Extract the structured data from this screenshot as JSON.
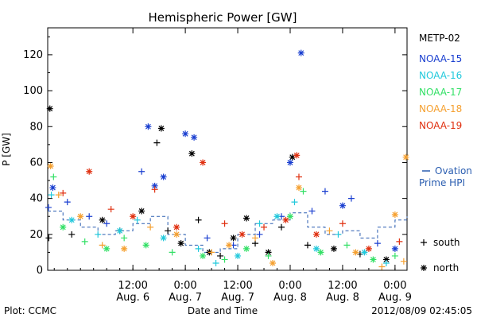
{
  "chart_data": {
    "type": "scatter",
    "title": "Hemispheric Power [GW]",
    "ylabel": "P [GW]",
    "xlabel": "Date and Time",
    "footer_left": "Plot: CCMC",
    "footer_right": "2012/08/09 02:45:05",
    "ylim": [
      0,
      135
    ],
    "yticks": [
      0,
      20,
      40,
      60,
      80,
      100,
      120
    ],
    "xlim": [
      "2012-08-05T16:30",
      "2012-08-09T02:45"
    ],
    "xticks": [
      {
        "at": "2012-08-06T12:00",
        "top": "12:00",
        "bottom": "Aug. 6"
      },
      {
        "at": "2012-08-07T00:00",
        "top": "0:00",
        "bottom": "Aug. 7"
      },
      {
        "at": "2012-08-07T12:00",
        "top": "12:00",
        "bottom": "Aug. 7"
      },
      {
        "at": "2012-08-08T00:00",
        "top": "0:00",
        "bottom": "Aug. 8"
      },
      {
        "at": "2012-08-08T12:00",
        "top": "12:00",
        "bottom": "Aug. 8"
      },
      {
        "at": "2012-08-09T00:00",
        "top": "0:00",
        "bottom": "Aug. 9"
      }
    ],
    "grid": false,
    "legend_position": "right",
    "series": [
      {
        "name": "METP-02",
        "color": "#000000",
        "points": [
          [
            "2012-08-05T16:45",
            18,
            "south"
          ],
          [
            "2012-08-05T17:00",
            90,
            "north"
          ],
          [
            "2012-08-05T22:00",
            20,
            "south"
          ],
          [
            "2012-08-06T05:00",
            28,
            "north"
          ],
          [
            "2012-08-06T09:00",
            22,
            "south"
          ],
          [
            "2012-08-06T14:00",
            33,
            "north"
          ],
          [
            "2012-08-06T17:30",
            71,
            "south"
          ],
          [
            "2012-08-06T18:30",
            79,
            "north"
          ],
          [
            "2012-08-06T20:00",
            22,
            "south"
          ],
          [
            "2012-08-06T23:00",
            15,
            "north"
          ],
          [
            "2012-08-07T01:30",
            65,
            "north"
          ],
          [
            "2012-08-07T03:00",
            28,
            "south"
          ],
          [
            "2012-08-07T05:30",
            10,
            "north"
          ],
          [
            "2012-08-07T08:00",
            8,
            "south"
          ],
          [
            "2012-08-07T11:00",
            18,
            "north"
          ],
          [
            "2012-08-07T14:00",
            29,
            "north"
          ],
          [
            "2012-08-07T16:00",
            15,
            "south"
          ],
          [
            "2012-08-07T19:00",
            10,
            "north"
          ],
          [
            "2012-08-07T22:00",
            24,
            "south"
          ],
          [
            "2012-08-08T00:30",
            63,
            "north"
          ],
          [
            "2012-08-08T04:00",
            14,
            "south"
          ],
          [
            "2012-08-08T10:00",
            12,
            "north"
          ],
          [
            "2012-08-08T16:00",
            9,
            "south"
          ],
          [
            "2012-08-08T22:00",
            6,
            "north"
          ]
        ]
      },
      {
        "name": "NOAA-15",
        "color": "#1a3fd0",
        "points": [
          [
            "2012-08-05T16:40",
            35,
            "south"
          ],
          [
            "2012-08-05T17:40",
            46,
            "north"
          ],
          [
            "2012-08-05T21:00",
            38,
            "south"
          ],
          [
            "2012-08-06T02:00",
            30,
            "south"
          ],
          [
            "2012-08-06T06:00",
            26,
            "south"
          ],
          [
            "2012-08-06T14:00",
            55,
            "south"
          ],
          [
            "2012-08-06T15:30",
            80,
            "north"
          ],
          [
            "2012-08-06T17:00",
            47,
            "north"
          ],
          [
            "2012-08-06T19:00",
            52,
            "north"
          ],
          [
            "2012-08-07T00:00",
            76,
            "north"
          ],
          [
            "2012-08-07T02:00",
            74,
            "north"
          ],
          [
            "2012-08-07T05:00",
            18,
            "south"
          ],
          [
            "2012-08-07T11:00",
            14,
            "south"
          ],
          [
            "2012-08-07T17:00",
            20,
            "south"
          ],
          [
            "2012-08-07T22:00",
            30,
            "south"
          ],
          [
            "2012-08-08T00:00",
            60,
            "north"
          ],
          [
            "2012-08-08T02:30",
            121,
            "north"
          ],
          [
            "2012-08-08T05:00",
            33,
            "south"
          ],
          [
            "2012-08-08T08:00",
            44,
            "south"
          ],
          [
            "2012-08-08T12:00",
            36,
            "north"
          ],
          [
            "2012-08-08T14:00",
            40,
            "south"
          ],
          [
            "2012-08-08T20:00",
            15,
            "south"
          ],
          [
            "2012-08-09T00:00",
            12,
            "north"
          ]
        ]
      },
      {
        "name": "NOAA-16",
        "color": "#22c9dc",
        "points": [
          [
            "2012-08-05T17:20",
            42,
            "south"
          ],
          [
            "2012-08-05T22:00",
            28,
            "north"
          ],
          [
            "2012-08-06T04:00",
            20,
            "south"
          ],
          [
            "2012-08-06T09:00",
            22,
            "north"
          ],
          [
            "2012-08-06T13:00",
            28,
            "south"
          ],
          [
            "2012-08-06T19:00",
            18,
            "north"
          ],
          [
            "2012-08-07T03:00",
            12,
            "south"
          ],
          [
            "2012-08-07T07:00",
            4,
            "south"
          ],
          [
            "2012-08-07T12:00",
            8,
            "north"
          ],
          [
            "2012-08-07T17:00",
            26,
            "south"
          ],
          [
            "2012-08-07T21:00",
            30,
            "north"
          ],
          [
            "2012-08-08T01:00",
            38,
            "south"
          ],
          [
            "2012-08-08T06:00",
            12,
            "north"
          ],
          [
            "2012-08-08T11:00",
            20,
            "south"
          ],
          [
            "2012-08-08T17:00",
            10,
            "north"
          ],
          [
            "2012-08-08T22:00",
            4,
            "south"
          ]
        ]
      },
      {
        "name": "NOAA-17",
        "color": "#33e066",
        "points": [
          [
            "2012-08-05T17:50",
            52,
            "south"
          ],
          [
            "2012-08-05T20:00",
            24,
            "north"
          ],
          [
            "2012-08-06T01:00",
            16,
            "south"
          ],
          [
            "2012-08-06T06:00",
            12,
            "north"
          ],
          [
            "2012-08-06T10:00",
            18,
            "south"
          ],
          [
            "2012-08-06T15:00",
            14,
            "north"
          ],
          [
            "2012-08-06T21:00",
            10,
            "south"
          ],
          [
            "2012-08-07T04:00",
            8,
            "north"
          ],
          [
            "2012-08-07T09:00",
            6,
            "south"
          ],
          [
            "2012-08-07T14:00",
            12,
            "north"
          ],
          [
            "2012-08-07T19:00",
            8,
            "south"
          ],
          [
            "2012-08-08T00:00",
            30,
            "north"
          ],
          [
            "2012-08-08T03:00",
            44,
            "south"
          ],
          [
            "2012-08-08T07:00",
            10,
            "north"
          ],
          [
            "2012-08-08T13:00",
            14,
            "south"
          ],
          [
            "2012-08-08T19:00",
            6,
            "north"
          ],
          [
            "2012-08-09T00:00",
            8,
            "south"
          ]
        ]
      },
      {
        "name": "NOAA-18",
        "color": "#f5a030",
        "points": [
          [
            "2012-08-05T17:10",
            58,
            "north"
          ],
          [
            "2012-08-05T19:00",
            42,
            "south"
          ],
          [
            "2012-08-06T00:00",
            30,
            "north"
          ],
          [
            "2012-08-06T05:00",
            14,
            "south"
          ],
          [
            "2012-08-06T10:00",
            12,
            "north"
          ],
          [
            "2012-08-06T16:00",
            24,
            "south"
          ],
          [
            "2012-08-06T22:00",
            20,
            "north"
          ],
          [
            "2012-08-07T06:00",
            10,
            "south"
          ],
          [
            "2012-08-07T10:00",
            14,
            "north"
          ],
          [
            "2012-08-07T16:00",
            18,
            "south"
          ],
          [
            "2012-08-07T20:00",
            4,
            "north"
          ],
          [
            "2012-08-08T02:00",
            46,
            "north"
          ],
          [
            "2012-08-08T09:00",
            22,
            "south"
          ],
          [
            "2012-08-08T15:00",
            10,
            "north"
          ],
          [
            "2012-08-08T21:00",
            2,
            "south"
          ],
          [
            "2012-08-09T00:00",
            31,
            "north"
          ],
          [
            "2012-08-09T02:30",
            63,
            "north"
          ],
          [
            "2012-08-09T02:00",
            5,
            "south"
          ]
        ]
      },
      {
        "name": "NOAA-19",
        "color": "#e03010",
        "points": [
          [
            "2012-08-05T20:00",
            43,
            "south"
          ],
          [
            "2012-08-06T02:00",
            55,
            "north"
          ],
          [
            "2012-08-06T07:00",
            34,
            "south"
          ],
          [
            "2012-08-06T12:00",
            30,
            "north"
          ],
          [
            "2012-08-06T17:00",
            45,
            "south"
          ],
          [
            "2012-08-06T22:00",
            24,
            "north"
          ],
          [
            "2012-08-07T04:00",
            60,
            "north"
          ],
          [
            "2012-08-07T09:00",
            26,
            "south"
          ],
          [
            "2012-08-07T13:00",
            20,
            "north"
          ],
          [
            "2012-08-07T18:00",
            24,
            "south"
          ],
          [
            "2012-08-07T23:00",
            28,
            "north"
          ],
          [
            "2012-08-08T01:30",
            64,
            "north"
          ],
          [
            "2012-08-08T02:00",
            52,
            "south"
          ],
          [
            "2012-08-08T06:00",
            20,
            "north"
          ],
          [
            "2012-08-08T12:00",
            26,
            "south"
          ],
          [
            "2012-08-08T18:00",
            12,
            "north"
          ],
          [
            "2012-08-09T01:00",
            16,
            "south"
          ]
        ]
      },
      {
        "name": "Ovation Prime HPI",
        "color": "#2a5db0",
        "style": "step",
        "points": [
          [
            "2012-08-05T16:30",
            33
          ],
          [
            "2012-08-05T20:00",
            28
          ],
          [
            "2012-08-06T00:00",
            24
          ],
          [
            "2012-08-06T04:00",
            20
          ],
          [
            "2012-08-06T08:00",
            22
          ],
          [
            "2012-08-06T12:00",
            26
          ],
          [
            "2012-08-06T16:00",
            30
          ],
          [
            "2012-08-06T20:00",
            20
          ],
          [
            "2012-08-07T00:00",
            14
          ],
          [
            "2012-08-07T04:00",
            10
          ],
          [
            "2012-08-07T08:00",
            12
          ],
          [
            "2012-08-07T12:00",
            20
          ],
          [
            "2012-08-07T16:00",
            26
          ],
          [
            "2012-08-07T20:00",
            28
          ],
          [
            "2012-08-08T00:00",
            32
          ],
          [
            "2012-08-08T04:00",
            24
          ],
          [
            "2012-08-08T08:00",
            20
          ],
          [
            "2012-08-08T12:00",
            22
          ],
          [
            "2012-08-08T16:00",
            18
          ],
          [
            "2012-08-08T20:00",
            24
          ],
          [
            "2012-08-09T00:00",
            28
          ],
          [
            "2012-08-09T02:45",
            30
          ]
        ]
      }
    ],
    "legend": {
      "items": [
        "METP-02",
        "NOAA-15",
        "NOAA-16",
        "NOAA-17",
        "NOAA-18",
        "NOAA-19"
      ],
      "ovation_line1": "Ovation",
      "ovation_line2": "Prime HPI",
      "ovation_color": "#2a5db0",
      "marker_south_label": "south",
      "marker_north_label": "north"
    }
  }
}
